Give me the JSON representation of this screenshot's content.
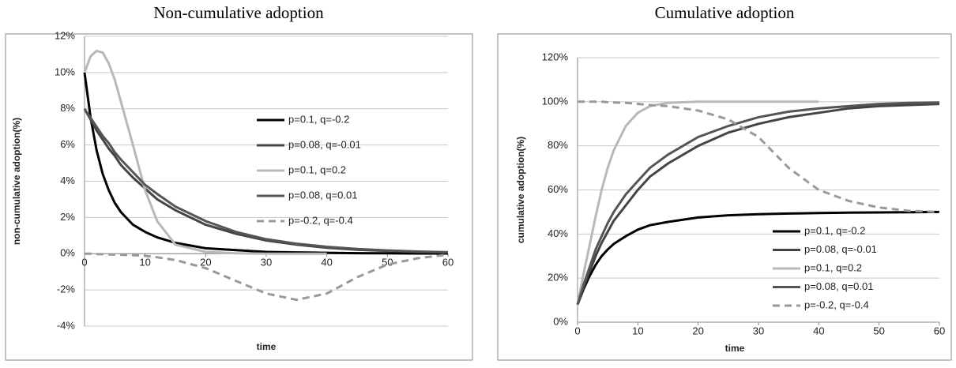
{
  "chart_data": [
    {
      "type": "line",
      "title": "Non-cumulative adoption",
      "x_label": "time",
      "y_label": "non-cumulative adoption(%)",
      "x": [
        0,
        1,
        2,
        3,
        4,
        5,
        6,
        8,
        10,
        12,
        15,
        20,
        25,
        30,
        35,
        40,
        45,
        50,
        55,
        60
      ],
      "xlim": [
        0,
        60
      ],
      "xticks": [
        0,
        10,
        20,
        30,
        40,
        50,
        60
      ],
      "ylim": [
        -4,
        12
      ],
      "yticks": [
        {
          "value": -4,
          "label": "-4%"
        },
        {
          "value": -2,
          "label": "-2%"
        },
        {
          "value": 0,
          "label": "0%"
        },
        {
          "value": 2,
          "label": "2%"
        },
        {
          "value": 4,
          "label": "4%"
        },
        {
          "value": 6,
          "label": "6%"
        },
        {
          "value": 8,
          "label": "8%"
        },
        {
          "value": 10,
          "label": "10%"
        },
        {
          "value": 12,
          "label": "12%"
        }
      ],
      "grid": true,
      "legend": "upper-right",
      "series": [
        {
          "name": "p=0.1, q=-0.2",
          "color": "#000000",
          "style": "solid",
          "values": [
            10,
            7.5,
            5.7,
            4.4,
            3.5,
            2.8,
            2.3,
            1.6,
            1.2,
            0.9,
            0.6,
            0.3,
            0.2,
            0.1,
            0.07,
            0.05,
            0.03,
            0.02,
            0.01,
            0.01
          ]
        },
        {
          "name": "p=0.08, q=-0.01",
          "color": "#444444",
          "style": "solid",
          "values": [
            8,
            7.4,
            6.8,
            6.3,
            5.8,
            5.4,
            4.9,
            4.2,
            3.6,
            3.0,
            2.4,
            1.6,
            1.1,
            0.73,
            0.5,
            0.33,
            0.22,
            0.15,
            0.1,
            0.07
          ]
        },
        {
          "name": "p=0.1, q=0.2",
          "color": "#b8b8b8",
          "style": "solid",
          "values": [
            10,
            10.9,
            11.2,
            11.1,
            10.5,
            9.6,
            8.4,
            6,
            3.5,
            1.8,
            0.5,
            0.1,
            0.02,
            0,
            0,
            0,
            null,
            null,
            null,
            null
          ]
        },
        {
          "name": "p=0.08, q=0.01",
          "color": "#555555",
          "style": "solid",
          "values": [
            8,
            7.5,
            7,
            6.5,
            6.1,
            5.6,
            5.2,
            4.5,
            3.8,
            3.3,
            2.6,
            1.8,
            1.2,
            0.8,
            0.55,
            0.38,
            0.26,
            0.18,
            0.12,
            0.08
          ]
        },
        {
          "name": "p=-0.2, q=-0.4",
          "color": "#999999",
          "style": "dashed",
          "values": [
            0,
            0,
            -0.02,
            -0.03,
            -0.04,
            -0.05,
            -0.06,
            -0.08,
            -0.12,
            -0.2,
            -0.35,
            -0.8,
            -1.5,
            -2.2,
            -2.55,
            -2.2,
            -1.3,
            -0.6,
            -0.25,
            -0.05
          ]
        }
      ]
    },
    {
      "type": "line",
      "title": "Cumulative adoption",
      "x_label": "time",
      "y_label": "cumulative adoption(%)",
      "x": [
        0,
        1,
        2,
        3,
        4,
        5,
        6,
        8,
        10,
        12,
        15,
        20,
        25,
        30,
        35,
        40,
        45,
        50,
        55,
        60
      ],
      "xlim": [
        0,
        60
      ],
      "xticks": [
        0,
        10,
        20,
        30,
        40,
        50,
        60
      ],
      "ylim": [
        0,
        120
      ],
      "yticks": [
        {
          "value": 0,
          "label": "0%"
        },
        {
          "value": 20,
          "label": "20%"
        },
        {
          "value": 40,
          "label": "40%"
        },
        {
          "value": 60,
          "label": "60%"
        },
        {
          "value": 80,
          "label": "80%"
        },
        {
          "value": 100,
          "label": "100%"
        },
        {
          "value": 120,
          "label": "120%"
        }
      ],
      "grid": true,
      "legend": "lower-right",
      "series": [
        {
          "name": "p=0.1, q=-0.2",
          "color": "#000000",
          "style": "solid",
          "values": [
            8,
            15,
            21,
            26,
            30,
            33,
            35.5,
            39,
            42,
            44,
            45.5,
            47.5,
            48.5,
            49,
            49.3,
            49.5,
            49.7,
            49.8,
            49.9,
            50
          ]
        },
        {
          "name": "p=0.08, q=-0.01",
          "color": "#444444",
          "style": "solid",
          "values": [
            8,
            16,
            23,
            30,
            36,
            41,
            46,
            53,
            60,
            66,
            72,
            80,
            86,
            90,
            93,
            95,
            97,
            98,
            98.5,
            99
          ]
        },
        {
          "name": "p=0.1, q=0.2",
          "color": "#b8b8b8",
          "style": "solid",
          "values": [
            8,
            22,
            35,
            48,
            60,
            70,
            78,
            89,
            95,
            98,
            99.5,
            100,
            100,
            100,
            100,
            100,
            null,
            null,
            null,
            null
          ]
        },
        {
          "name": "p=0.08, q=0.01",
          "color": "#555555",
          "style": "solid",
          "values": [
            8,
            17,
            25,
            33,
            39,
            45,
            50,
            58,
            64,
            70,
            76,
            84,
            89,
            93,
            95.5,
            97,
            98,
            99,
            99.5,
            99.7
          ]
        },
        {
          "name": "p=-0.2, q=-0.4",
          "color": "#999999",
          "style": "dashed",
          "values": [
            100,
            100,
            100,
            100,
            100,
            99.8,
            99.7,
            99.5,
            99,
            98.5,
            98,
            96,
            92,
            84,
            70,
            60,
            55,
            52,
            50.5,
            50
          ]
        }
      ]
    }
  ]
}
